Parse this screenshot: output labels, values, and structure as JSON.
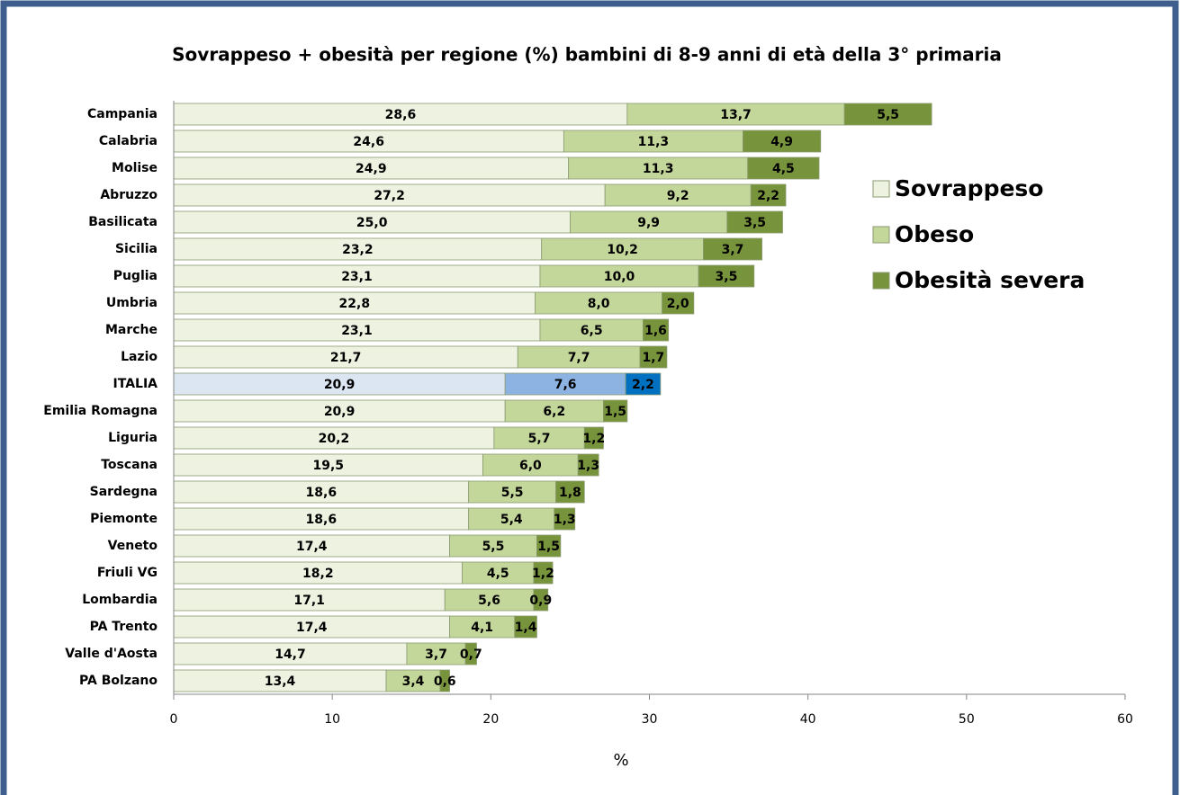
{
  "chart_data": {
    "type": "hbar_stacked",
    "title": "Sovrappeso + obesità per regione (%) bambini di 8-9 anni di età della 3° primaria",
    "xlabel": "%",
    "categories": [
      "Campania",
      "Calabria",
      "Molise",
      "Abruzzo",
      "Basilicata",
      "Sicilia",
      "Puglia",
      "Umbria",
      "Marche",
      "Lazio",
      "ITALIA",
      "Emilia Romagna",
      "Liguria",
      "Toscana",
      "Sardegna",
      "Piemonte",
      "Veneto",
      "Friuli VG",
      "Lombardia",
      "PA Trento",
      "Valle d'Aosta",
      "PA Bolzano"
    ],
    "highlight_index": 10,
    "series": [
      {
        "name": "Sovrappeso",
        "color": "#eef2e1",
        "highlight_color": "#dce6f2",
        "values": [
          28.6,
          24.6,
          24.9,
          27.2,
          25.0,
          23.2,
          23.1,
          22.8,
          23.1,
          21.7,
          20.9,
          20.9,
          20.2,
          19.5,
          18.6,
          18.6,
          17.4,
          18.2,
          17.1,
          17.4,
          14.7,
          13.4
        ],
        "value_labels": [
          "28,6",
          "24,6",
          "24,9",
          "27,2",
          "25,0",
          "23,2",
          "23,1",
          "22,8",
          "23,1",
          "21,7",
          "20,9",
          "20,9",
          "20,2",
          "19,5",
          "18,6",
          "18,6",
          "17,4",
          "18,2",
          "17,1",
          "17,4",
          "14,7",
          "13,4"
        ]
      },
      {
        "name": "Obeso",
        "color": "#c4d79b",
        "highlight_color": "#8db3e2",
        "values": [
          13.7,
          11.3,
          11.3,
          9.2,
          9.9,
          10.2,
          10.0,
          8.0,
          6.5,
          7.7,
          7.6,
          6.2,
          5.7,
          6.0,
          5.5,
          5.4,
          5.5,
          4.5,
          5.6,
          4.1,
          3.7,
          3.4
        ],
        "value_labels": [
          "13,7",
          "11,3",
          "11,3",
          "9,2",
          "9,9",
          "10,2",
          "10,0",
          "8,0",
          "6,5",
          "7,7",
          "7,6",
          "6,2",
          "5,7",
          "6,0",
          "5,5",
          "5,4",
          "5,5",
          "4,5",
          "5,6",
          "4,1",
          "3,7",
          "3,4"
        ]
      },
      {
        "name": "Obesità severa",
        "color": "#77933c",
        "highlight_color": "#0070c0",
        "values": [
          5.5,
          4.9,
          4.5,
          2.2,
          3.5,
          3.7,
          3.5,
          2.0,
          1.6,
          1.7,
          2.2,
          1.5,
          1.2,
          1.3,
          1.8,
          1.3,
          1.5,
          1.2,
          0.9,
          1.4,
          0.7,
          0.6
        ],
        "value_labels": [
          "5,5",
          "4,9",
          "4,5",
          "2,2",
          "3,5",
          "3,7",
          "3,5",
          "2,0",
          "1,6",
          "1,7",
          "2,2",
          "1,5",
          "1,2",
          "1,3",
          "1,8",
          "1,3",
          "1,5",
          "1,2",
          "0,9",
          "1,4",
          "0,7",
          "0,6"
        ]
      }
    ],
    "xlim": [
      0,
      60
    ],
    "xticks": [
      0,
      10,
      20,
      30,
      40,
      50,
      60
    ],
    "legend": "right",
    "grid": false
  }
}
